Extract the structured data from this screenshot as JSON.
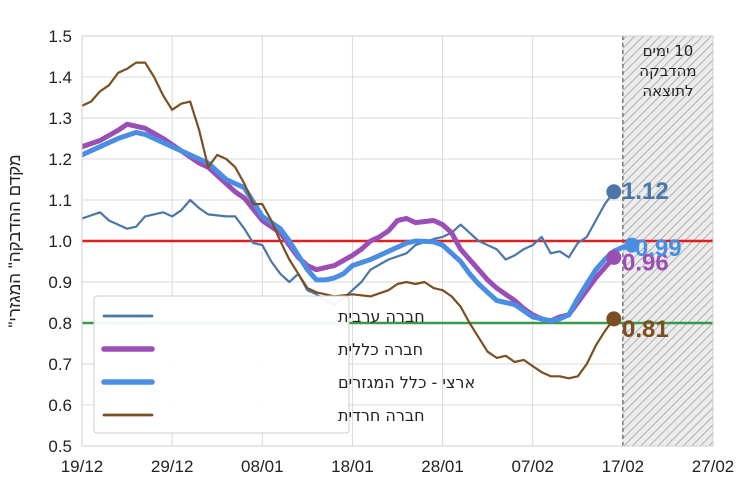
{
  "chart_data": {
    "type": "line",
    "ylabel": "\"מקדם ההדבקה\" המגזרי",
    "ylim": [
      0.5,
      1.5
    ],
    "yticks": [
      "0.5",
      "0.6",
      "0.7",
      "0.8",
      "0.9",
      "1.0",
      "1.1",
      "1.2",
      "1.3",
      "1.4",
      "1.5"
    ],
    "xticks": [
      "19/12",
      "29/12",
      "08/01",
      "18/01",
      "28/01",
      "07/02",
      "17/02",
      "27/02"
    ],
    "x_start": "2020-12-19",
    "x_end": "2021-02-27",
    "grid": true,
    "legend_position": "bottom-left",
    "shaded_region": {
      "from": "2021-02-17",
      "to": "2021-02-27",
      "label_lines": [
        "10 ימים",
        "מהדבקה",
        "לתוצאה"
      ]
    },
    "reference_lines": [
      {
        "y": 1.0,
        "color": "#e02020"
      },
      {
        "y": 0.8,
        "color": "#3a9a48"
      }
    ],
    "series": [
      {
        "name": "חברה ערבית",
        "color": "#4a77a8",
        "end_label": "1.12",
        "points": [
          [
            "2020-12-19",
            1.055
          ],
          [
            "2020-12-21",
            1.07
          ],
          [
            "2020-12-22",
            1.05
          ],
          [
            "2020-12-24",
            1.03
          ],
          [
            "2020-12-25",
            1.035
          ],
          [
            "2020-12-26",
            1.06
          ],
          [
            "2020-12-28",
            1.07
          ],
          [
            "2020-12-29",
            1.06
          ],
          [
            "2020-12-30",
            1.075
          ],
          [
            "2020-12-31",
            1.1
          ],
          [
            "2021-01-01",
            1.08
          ],
          [
            "2021-01-02",
            1.065
          ],
          [
            "2021-01-04",
            1.06
          ],
          [
            "2021-01-05",
            1.06
          ],
          [
            "2021-01-06",
            1.03
          ],
          [
            "2021-01-07",
            0.995
          ],
          [
            "2021-01-08",
            0.99
          ],
          [
            "2021-01-09",
            0.95
          ],
          [
            "2021-01-10",
            0.92
          ],
          [
            "2021-01-11",
            0.9
          ],
          [
            "2021-01-12",
            0.92
          ],
          [
            "2021-01-13",
            0.88
          ],
          [
            "2021-01-14",
            0.87
          ],
          [
            "2021-01-15",
            0.855
          ],
          [
            "2021-01-16",
            0.845
          ],
          [
            "2021-01-17",
            0.86
          ],
          [
            "2021-01-18",
            0.88
          ],
          [
            "2021-01-19",
            0.9
          ],
          [
            "2021-01-20",
            0.93
          ],
          [
            "2021-01-22",
            0.955
          ],
          [
            "2021-01-24",
            0.97
          ],
          [
            "2021-01-25",
            0.99
          ],
          [
            "2021-01-27",
            1.005
          ],
          [
            "2021-01-28",
            1.01
          ],
          [
            "2021-01-29",
            1.02
          ],
          [
            "2021-01-30",
            1.04
          ],
          [
            "2021-01-31",
            1.02
          ],
          [
            "2021-02-01",
            1.0
          ],
          [
            "2021-02-03",
            0.98
          ],
          [
            "2021-02-04",
            0.955
          ],
          [
            "2021-02-05",
            0.965
          ],
          [
            "2021-02-06",
            0.98
          ],
          [
            "2021-02-07",
            0.99
          ],
          [
            "2021-02-08",
            1.01
          ],
          [
            "2021-02-09",
            0.97
          ],
          [
            "2021-02-10",
            0.975
          ],
          [
            "2021-02-11",
            0.96
          ],
          [
            "2021-02-12",
            0.995
          ],
          [
            "2021-02-13",
            1.01
          ],
          [
            "2021-02-14",
            1.05
          ],
          [
            "2021-02-15",
            1.09
          ],
          [
            "2021-02-16",
            1.12
          ]
        ]
      },
      {
        "name": "חברה כללית",
        "color": "#9b4fb5",
        "end_label": "0.96",
        "points": [
          [
            "2020-12-19",
            1.23
          ],
          [
            "2020-12-21",
            1.245
          ],
          [
            "2020-12-23",
            1.27
          ],
          [
            "2020-12-24",
            1.285
          ],
          [
            "2020-12-26",
            1.275
          ],
          [
            "2020-12-28",
            1.25
          ],
          [
            "2020-12-30",
            1.22
          ],
          [
            "2021-01-01",
            1.19
          ],
          [
            "2021-01-02",
            1.18
          ],
          [
            "2021-01-04",
            1.14
          ],
          [
            "2021-01-05",
            1.12
          ],
          [
            "2021-01-06",
            1.105
          ],
          [
            "2021-01-08",
            1.05
          ],
          [
            "2021-01-10",
            1.02
          ],
          [
            "2021-01-11",
            0.99
          ],
          [
            "2021-01-12",
            0.96
          ],
          [
            "2021-01-13",
            0.94
          ],
          [
            "2021-01-14",
            0.93
          ],
          [
            "2021-01-15",
            0.935
          ],
          [
            "2021-01-16",
            0.94
          ],
          [
            "2021-01-18",
            0.965
          ],
          [
            "2021-01-19",
            0.98
          ],
          [
            "2021-01-20",
            1.0
          ],
          [
            "2021-01-21",
            1.01
          ],
          [
            "2021-01-22",
            1.025
          ],
          [
            "2021-01-23",
            1.05
          ],
          [
            "2021-01-24",
            1.055
          ],
          [
            "2021-01-25",
            1.045
          ],
          [
            "2021-01-27",
            1.05
          ],
          [
            "2021-01-28",
            1.04
          ],
          [
            "2021-01-29",
            1.02
          ],
          [
            "2021-01-30",
            0.98
          ],
          [
            "2021-01-31",
            0.955
          ],
          [
            "2021-02-01",
            0.93
          ],
          [
            "2021-02-02",
            0.905
          ],
          [
            "2021-02-03",
            0.885
          ],
          [
            "2021-02-04",
            0.87
          ],
          [
            "2021-02-05",
            0.855
          ],
          [
            "2021-02-06",
            0.835
          ],
          [
            "2021-02-07",
            0.82
          ],
          [
            "2021-02-08",
            0.81
          ],
          [
            "2021-02-09",
            0.805
          ],
          [
            "2021-02-10",
            0.815
          ],
          [
            "2021-02-11",
            0.82
          ],
          [
            "2021-02-12",
            0.85
          ],
          [
            "2021-02-13",
            0.88
          ],
          [
            "2021-02-14",
            0.91
          ],
          [
            "2021-02-15",
            0.935
          ],
          [
            "2021-02-16",
            0.96
          ]
        ]
      },
      {
        "name": "ארצי - כלל המגזרים",
        "color": "#4a8ee3",
        "end_label": "0.99",
        "points": [
          [
            "2020-12-19",
            1.21
          ],
          [
            "2020-12-21",
            1.23
          ],
          [
            "2020-12-23",
            1.25
          ],
          [
            "2020-12-25",
            1.265
          ],
          [
            "2020-12-26",
            1.26
          ],
          [
            "2020-12-28",
            1.24
          ],
          [
            "2020-12-30",
            1.22
          ],
          [
            "2021-01-01",
            1.2
          ],
          [
            "2021-01-02",
            1.19
          ],
          [
            "2021-01-04",
            1.15
          ],
          [
            "2021-01-06",
            1.13
          ],
          [
            "2021-01-08",
            1.06
          ],
          [
            "2021-01-10",
            1.03
          ],
          [
            "2021-01-11",
            1.0
          ],
          [
            "2021-01-12",
            0.965
          ],
          [
            "2021-01-13",
            0.93
          ],
          [
            "2021-01-14",
            0.905
          ],
          [
            "2021-01-15",
            0.905
          ],
          [
            "2021-01-16",
            0.91
          ],
          [
            "2021-01-17",
            0.92
          ],
          [
            "2021-01-18",
            0.94
          ],
          [
            "2021-01-20",
            0.955
          ],
          [
            "2021-01-22",
            0.975
          ],
          [
            "2021-01-24",
            0.995
          ],
          [
            "2021-01-25",
            1.0
          ],
          [
            "2021-01-27",
            0.998
          ],
          [
            "2021-01-28",
            0.99
          ],
          [
            "2021-01-29",
            0.97
          ],
          [
            "2021-01-30",
            0.95
          ],
          [
            "2021-01-31",
            0.92
          ],
          [
            "2021-02-01",
            0.895
          ],
          [
            "2021-02-02",
            0.875
          ],
          [
            "2021-02-03",
            0.855
          ],
          [
            "2021-02-05",
            0.845
          ],
          [
            "2021-02-06",
            0.83
          ],
          [
            "2021-02-07",
            0.815
          ],
          [
            "2021-02-09",
            0.805
          ],
          [
            "2021-02-10",
            0.81
          ],
          [
            "2021-02-11",
            0.82
          ],
          [
            "2021-02-12",
            0.86
          ],
          [
            "2021-02-13",
            0.895
          ],
          [
            "2021-02-14",
            0.93
          ],
          [
            "2021-02-15",
            0.955
          ],
          [
            "2021-02-16",
            0.975
          ],
          [
            "2021-02-17",
            0.985
          ],
          [
            "2021-02-18",
            0.99
          ]
        ]
      },
      {
        "name": "חברה חרדית",
        "color": "#7b4f21",
        "end_label": "0.81",
        "points": [
          [
            "2020-12-19",
            1.33
          ],
          [
            "2020-12-20",
            1.34
          ],
          [
            "2020-12-21",
            1.365
          ],
          [
            "2020-12-22",
            1.38
          ],
          [
            "2020-12-23",
            1.41
          ],
          [
            "2020-12-24",
            1.42
          ],
          [
            "2020-12-25",
            1.435
          ],
          [
            "2020-12-26",
            1.435
          ],
          [
            "2020-12-27",
            1.4
          ],
          [
            "2020-12-28",
            1.355
          ],
          [
            "2020-12-29",
            1.32
          ],
          [
            "2020-12-30",
            1.335
          ],
          [
            "2020-12-31",
            1.34
          ],
          [
            "2021-01-01",
            1.27
          ],
          [
            "2021-01-02",
            1.18
          ],
          [
            "2021-01-03",
            1.21
          ],
          [
            "2021-01-04",
            1.2
          ],
          [
            "2021-01-05",
            1.18
          ],
          [
            "2021-01-06",
            1.14
          ],
          [
            "2021-01-07",
            1.09
          ],
          [
            "2021-01-08",
            1.09
          ],
          [
            "2021-01-09",
            1.05
          ],
          [
            "2021-01-10",
            1.0
          ],
          [
            "2021-01-11",
            0.955
          ],
          [
            "2021-01-12",
            0.92
          ],
          [
            "2021-01-13",
            0.885
          ],
          [
            "2021-01-14",
            0.875
          ],
          [
            "2021-01-15",
            0.87
          ],
          [
            "2021-01-16",
            0.865
          ],
          [
            "2021-01-18",
            0.87
          ],
          [
            "2021-01-20",
            0.865
          ],
          [
            "2021-01-22",
            0.88
          ],
          [
            "2021-01-23",
            0.895
          ],
          [
            "2021-01-24",
            0.9
          ],
          [
            "2021-01-25",
            0.895
          ],
          [
            "2021-01-26",
            0.9
          ],
          [
            "2021-01-27",
            0.885
          ],
          [
            "2021-01-28",
            0.88
          ],
          [
            "2021-01-29",
            0.865
          ],
          [
            "2021-01-30",
            0.84
          ],
          [
            "2021-01-31",
            0.8
          ],
          [
            "2021-02-01",
            0.765
          ],
          [
            "2021-02-02",
            0.73
          ],
          [
            "2021-02-03",
            0.715
          ],
          [
            "2021-02-04",
            0.72
          ],
          [
            "2021-02-05",
            0.705
          ],
          [
            "2021-02-06",
            0.71
          ],
          [
            "2021-02-07",
            0.695
          ],
          [
            "2021-02-08",
            0.68
          ],
          [
            "2021-02-09",
            0.67
          ],
          [
            "2021-02-10",
            0.67
          ],
          [
            "2021-02-11",
            0.665
          ],
          [
            "2021-02-12",
            0.67
          ],
          [
            "2021-02-13",
            0.7
          ],
          [
            "2021-02-14",
            0.745
          ],
          [
            "2021-02-15",
            0.78
          ],
          [
            "2021-02-16",
            0.81
          ]
        ]
      }
    ]
  }
}
